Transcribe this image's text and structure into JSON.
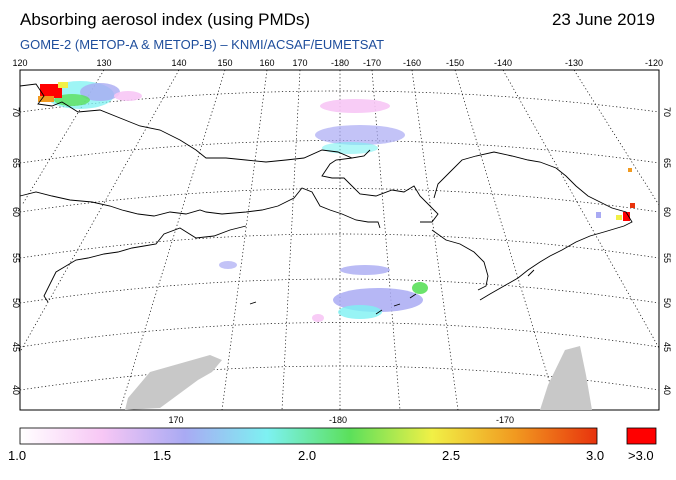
{
  "header": {
    "title": "Absorbing aerosol index (using PMDs)",
    "date": "23 June 2019",
    "subtitle": "GOME-2 (METOP-A & METOP-B)  –  KNMI/ACSAF/EUMETSAT"
  },
  "map": {
    "top_lon_labels": [
      "120",
      "130",
      "140",
      "150",
      "160",
      "170",
      "-180",
      "-170",
      "-160",
      "-150",
      "-140",
      "-130",
      "-120"
    ],
    "bottom_lon_labels": [
      "170",
      "-180",
      "-170"
    ],
    "lat_labels": [
      "70",
      "65",
      "60",
      "55",
      "50",
      "45",
      "40"
    ],
    "colors": {
      "land_outline": "#000000",
      "grid": "#000000",
      "no_data": "#c8c8c8",
      "high_aerosol": "#ff0000"
    }
  },
  "colorbar": {
    "tick_labels": [
      "1.0",
      "1.5",
      "2.0",
      "2.5",
      "3.0"
    ],
    "over_label": ">3.0",
    "stops": [
      "#ffffff",
      "#f7c7f5",
      "#a9aaf3",
      "#7df1f2",
      "#5be05b",
      "#f1f046",
      "#f19a20",
      "#e8330d"
    ],
    "over_color": "#ff0000"
  }
}
